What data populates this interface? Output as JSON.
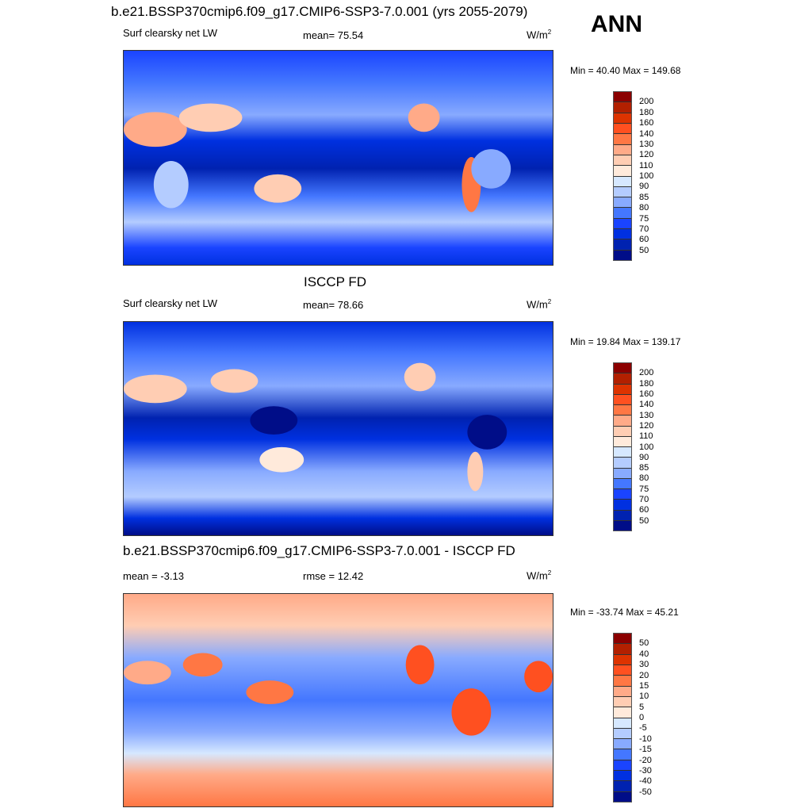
{
  "header": {
    "title": "b.e21.BSSP370cmip6.f09_g17.CMIP6-SSP3-7.0.001 (yrs 2055-2079)",
    "season": "ANN"
  },
  "panels": [
    {
      "title": "",
      "left": "Surf clearsky net LW",
      "center": "mean=  75.54",
      "units": "W/m",
      "units_sup": "2",
      "minmax": "Min =  40.40 Max = 149.68",
      "levels": [
        "200",
        "180",
        "160",
        "140",
        "130",
        "120",
        "110",
        "100",
        "90",
        "85",
        "80",
        "75",
        "70",
        "60",
        "50"
      ]
    },
    {
      "title": "ISCCP FD",
      "left": "Surf clearsky net LW",
      "center": "mean=  78.66",
      "units": "W/m",
      "units_sup": "2",
      "minmax": "Min =  19.84 Max = 139.17",
      "levels": [
        "200",
        "180",
        "160",
        "140",
        "130",
        "120",
        "110",
        "100",
        "90",
        "85",
        "80",
        "75",
        "70",
        "60",
        "50"
      ]
    },
    {
      "title": "b.e21.BSSP370cmip6.f09_g17.CMIP6-SSP3-7.0.001 - ISCCP FD",
      "left": "mean =  -3.13",
      "center": "rmse =  12.42",
      "units": "W/m",
      "units_sup": "2",
      "minmax": "Min = -33.74 Max =  45.21",
      "levels": [
        "50",
        "40",
        "30",
        "20",
        "15",
        "10",
        "5",
        "0",
        "-5",
        "-10",
        "-15",
        "-20",
        "-30",
        "-40",
        "-50"
      ]
    }
  ],
  "colors": [
    "#8b0000",
    "#b22000",
    "#dd3300",
    "#ff5020",
    "#ff7744",
    "#ffaa88",
    "#ffcdb3",
    "#ffeadb",
    "#d6e8ff",
    "#b4ccff",
    "#88aaff",
    "#4477ff",
    "#1a44ff",
    "#0030e0",
    "#0022b0",
    "#000d88"
  ]
}
